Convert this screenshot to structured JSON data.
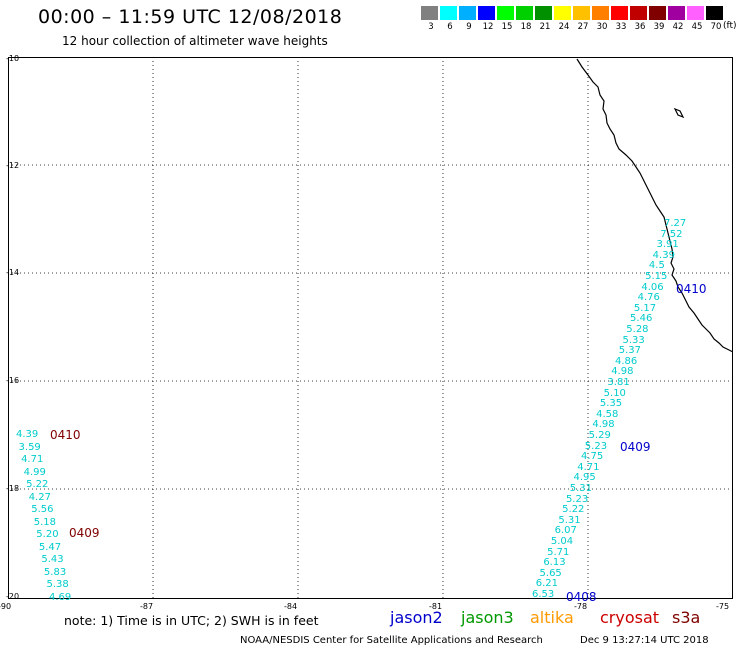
{
  "header": {
    "title": "00:00 – 11:59 UTC 12/08/2018",
    "subtitle": "12 hour collection of altimeter wave heights"
  },
  "scale": {
    "unit": "(ft)",
    "colors": [
      "#808080",
      "#00ffff",
      "#00b0ff",
      "#0000ff",
      "#00ff00",
      "#00d000",
      "#009000",
      "#ffff00",
      "#ffc000",
      "#ff8000",
      "#ff0000",
      "#c00000",
      "#800000",
      "#a000a0",
      "#ff60ff",
      "#000000"
    ],
    "labels": [
      "3",
      "6",
      "9",
      "12",
      "15",
      "18",
      "21",
      "24",
      "27",
      "30",
      "33",
      "36",
      "39",
      "42",
      "45",
      "70"
    ]
  },
  "axes": {
    "lat_labels": [
      "-10",
      "-12",
      "-14",
      "-16",
      "-18",
      "-20"
    ],
    "lon_labels": [
      "-90",
      "-87",
      "-84",
      "-81",
      "-78",
      "-75"
    ]
  },
  "tracks": {
    "jason2_right": {
      "color": "#00cccc",
      "values": [
        "7.27",
        "7.52",
        "3.91",
        "4.39",
        "4.5",
        "5.15",
        "4.06",
        "4.76",
        "5.17",
        "5.46",
        "5.28",
        "5.33",
        "5.37",
        "4.86",
        "4.98",
        "3.81",
        "5.10",
        "5.35",
        "4.58",
        "4.98",
        "5.29",
        "5.23",
        "4.75",
        "4.71",
        "4.95",
        "5.31",
        "5.23",
        "5.22",
        "5.31",
        "6.07",
        "5.04",
        "5.71",
        "6.13",
        "5.65",
        "6.21",
        "6.53"
      ]
    },
    "cryosat_left": {
      "color": "#00cccc",
      "values": [
        "4.39",
        "3.59",
        "4.71",
        "4.99",
        "5.22",
        "4.27",
        "5.56",
        "5.18",
        "5.20",
        "5.47",
        "5.43",
        "5.83",
        "5.38",
        "4.69"
      ]
    }
  },
  "time_tags": {
    "jason2_0410": {
      "text": "0410",
      "color": "#0000cc"
    },
    "jason2_0409": {
      "text": "0409",
      "color": "#0000cc"
    },
    "jason2_0408": {
      "text": "0408",
      "color": "#0000cc"
    },
    "cryosat_0410": {
      "text": "0410",
      "color": "#800000"
    },
    "cryosat_0409": {
      "text": "0409",
      "color": "#800000"
    }
  },
  "footer": {
    "note": "note: 1) Time is in UTC; 2) SWH is in feet",
    "satellites": [
      {
        "name": "jason2",
        "color": "#0000cc"
      },
      {
        "name": "jason3",
        "color": "#009900"
      },
      {
        "name": "altika",
        "color": "#ff9900"
      },
      {
        "name": "cryosat",
        "color": "#cc0000"
      },
      {
        "name": "s3a",
        "color": "#800000"
      }
    ],
    "credit": "NOAA/NESDIS Center for Satellite Applications and Research",
    "timestamp": "Dec  9 13:27:14 UTC 2018"
  }
}
